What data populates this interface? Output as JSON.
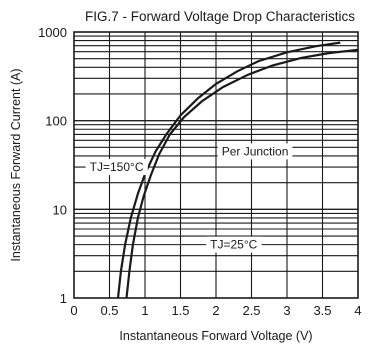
{
  "chart_data": {
    "type": "line",
    "title": "FIG.7 - Forward Voltage Drop Characteristics",
    "xlabel": "Instantaneous Forward Voltage (V)",
    "ylabel": "Instantaneous Forward Current (A)",
    "xlim": [
      0,
      4
    ],
    "ylim": [
      1,
      1000
    ],
    "yscale": "log",
    "grid": true,
    "x_ticks": [
      "0",
      "0.5",
      "1",
      "1.5",
      "2",
      "2.5",
      "3",
      "3.5",
      "4"
    ],
    "y_ticks": [
      "1",
      "10",
      "100",
      "1000"
    ],
    "series": [
      {
        "points": [
          [
            0.62,
            1
          ],
          [
            0.66,
            2
          ],
          [
            0.72,
            4
          ],
          [
            0.8,
            8
          ],
          [
            0.9,
            15
          ],
          [
            1.0,
            25
          ],
          [
            1.15,
            45
          ],
          [
            1.3,
            70
          ],
          [
            1.5,
            115
          ],
          [
            1.75,
            180
          ],
          [
            2.0,
            260
          ],
          [
            2.3,
            360
          ],
          [
            2.6,
            470
          ],
          [
            3.0,
            590
          ],
          [
            3.4,
            690
          ],
          [
            3.75,
            760
          ]
        ]
      },
      {
        "points": [
          [
            0.74,
            1
          ],
          [
            0.78,
            2
          ],
          [
            0.83,
            4
          ],
          [
            0.9,
            8
          ],
          [
            0.98,
            14
          ],
          [
            1.08,
            24
          ],
          [
            1.2,
            42
          ],
          [
            1.35,
            70
          ],
          [
            1.55,
            110
          ],
          [
            1.8,
            165
          ],
          [
            2.1,
            240
          ],
          [
            2.45,
            330
          ],
          [
            2.8,
            420
          ],
          [
            3.2,
            510
          ],
          [
            3.6,
            580
          ],
          [
            4.0,
            630
          ]
        ]
      }
    ],
    "annotations": [
      {
        "text": "TJ=150°C",
        "x": 0.6,
        "y": 30
      },
      {
        "text": "Per Junction",
        "x": 2.55,
        "y": 45
      },
      {
        "text": "TJ=25°C",
        "x": 2.25,
        "y": 4
      }
    ]
  }
}
